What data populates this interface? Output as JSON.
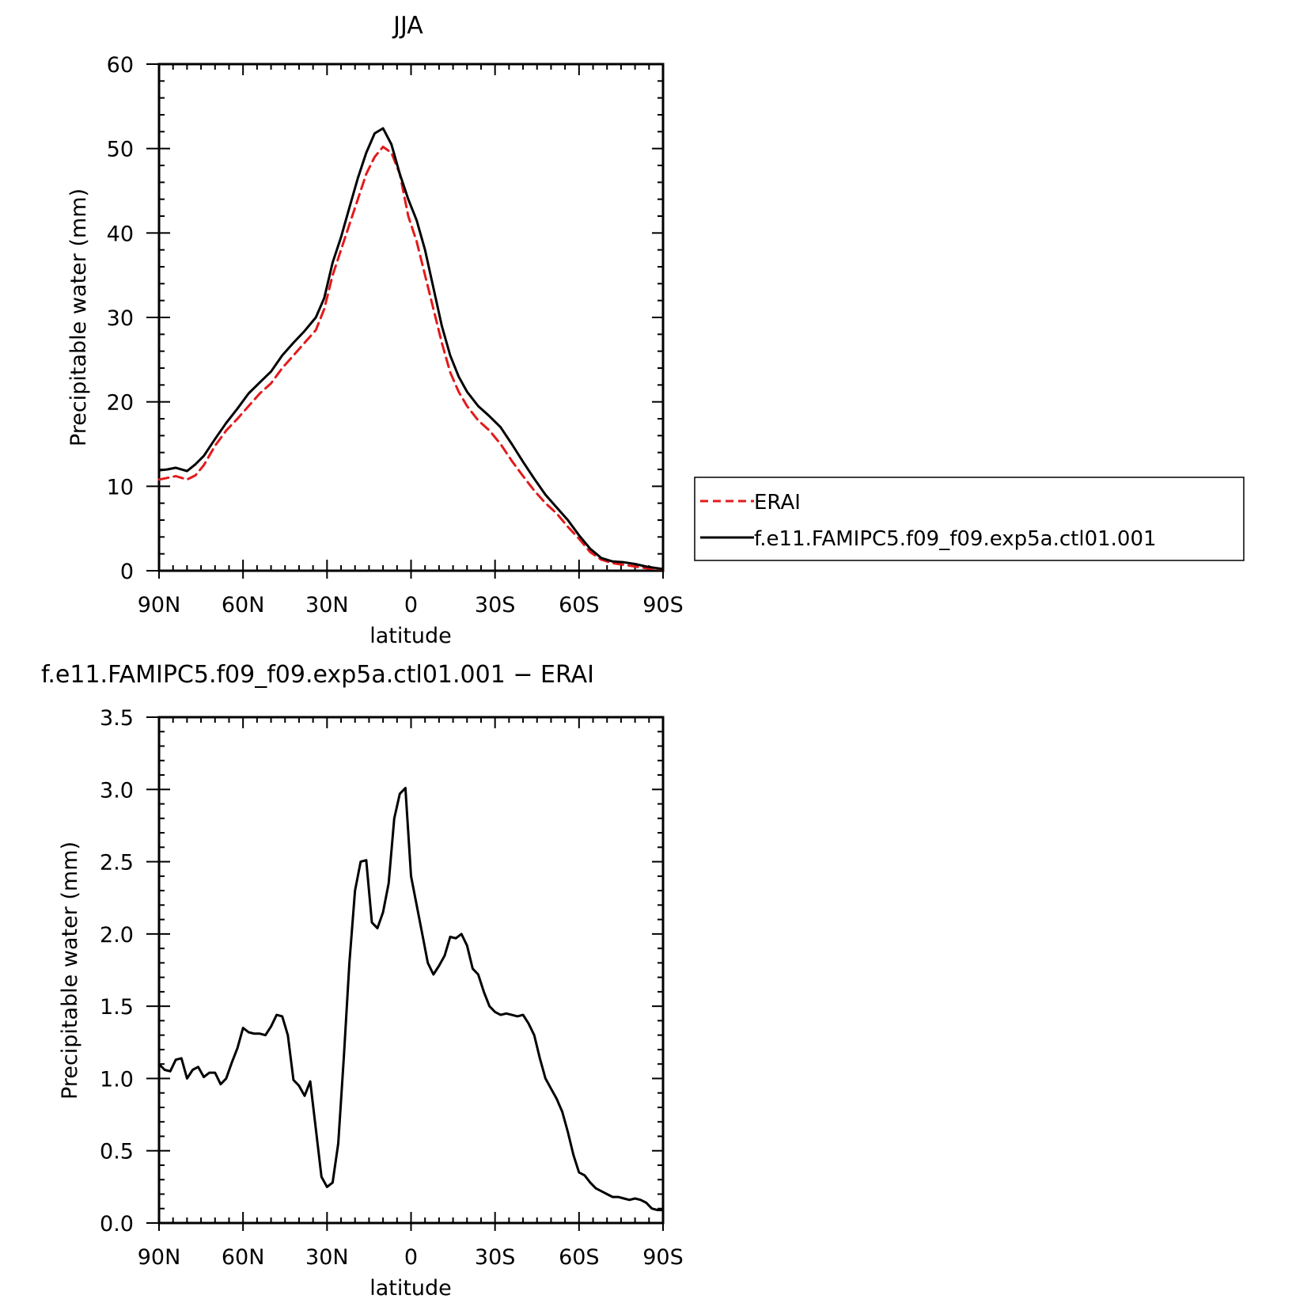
{
  "chart_data": [
    {
      "type": "line",
      "title": "JJA",
      "xlabel": "latitude",
      "ylabel": "Precipitable water (mm)",
      "xlim": [
        90,
        -90
      ],
      "ylim": [
        0,
        60
      ],
      "x_tick_values": [
        90,
        60,
        30,
        0,
        -30,
        -60,
        -90
      ],
      "x_tick_labels": [
        "90N",
        "60N",
        "30N",
        "0",
        "30S",
        "60S",
        "90S"
      ],
      "y_tick_values": [
        0,
        10,
        20,
        30,
        40,
        50,
        60
      ],
      "y_tick_labels": [
        "0",
        "10",
        "20",
        "30",
        "40",
        "50",
        "60"
      ],
      "grid": false,
      "legend_position": "right",
      "series": [
        {
          "name": "ERAI",
          "color": "#e31a1c",
          "dash": "dashed",
          "x": [
            90,
            87,
            84,
            80,
            77,
            74,
            70,
            66,
            62,
            58,
            54,
            50,
            46,
            42,
            38,
            34,
            31,
            28,
            25,
            22,
            19,
            16,
            13,
            10,
            7,
            4,
            1,
            -2,
            -5,
            -8,
            -11,
            -14,
            -17,
            -20,
            -24,
            -28,
            -32,
            -36,
            -40,
            -44,
            -48,
            -52,
            -56,
            -60,
            -64,
            -68,
            -72,
            -76,
            -80,
            -84,
            -88,
            -90
          ],
          "values": [
            10.8,
            11.0,
            11.2,
            10.8,
            11.3,
            12.5,
            14.8,
            16.6,
            18.0,
            19.5,
            21.0,
            22.2,
            24.0,
            25.5,
            27.0,
            28.5,
            31.0,
            35.0,
            38.0,
            41.0,
            44.0,
            47.0,
            49.0,
            50.2,
            49.5,
            47.0,
            42.0,
            39.0,
            35.0,
            31.0,
            27.0,
            23.5,
            21.2,
            19.5,
            17.8,
            16.6,
            15.0,
            13.0,
            11.2,
            9.5,
            8.0,
            6.8,
            5.2,
            3.8,
            2.2,
            1.3,
            0.9,
            0.7,
            0.5,
            0.3,
            0.2,
            0.2
          ]
        },
        {
          "name": "f.e11.FAMIPC5.f09_f09.exp5a.ctl01.001",
          "color": "#000000",
          "dash": "solid",
          "x": [
            90,
            87,
            84,
            80,
            77,
            74,
            70,
            66,
            62,
            58,
            54,
            50,
            46,
            42,
            38,
            34,
            31,
            28,
            25,
            22,
            19,
            16,
            13,
            10,
            7,
            4,
            1,
            -2,
            -5,
            -8,
            -11,
            -14,
            -17,
            -20,
            -24,
            -28,
            -32,
            -36,
            -40,
            -44,
            -48,
            -52,
            -56,
            -60,
            -64,
            -68,
            -72,
            -76,
            -80,
            -84,
            -88,
            -90
          ],
          "values": [
            11.9,
            12.0,
            12.2,
            11.8,
            12.6,
            13.6,
            15.6,
            17.5,
            19.2,
            21.0,
            22.3,
            23.6,
            25.5,
            27.0,
            28.4,
            30.0,
            32.3,
            36.5,
            39.5,
            43.0,
            46.5,
            49.5,
            51.8,
            52.4,
            50.5,
            47.0,
            44.0,
            41.5,
            38.0,
            33.5,
            29.0,
            25.5,
            23.0,
            21.2,
            19.5,
            18.3,
            17.0,
            15.0,
            12.9,
            10.9,
            9.0,
            7.5,
            6.0,
            4.2,
            2.6,
            1.5,
            1.1,
            1.0,
            0.8,
            0.5,
            0.3,
            0.2
          ]
        }
      ]
    },
    {
      "type": "line",
      "title": "f.e11.FAMIPC5.f09_f09.exp5a.ctl01.001 − ERAI",
      "xlabel": "latitude",
      "ylabel": "Precipitable water (mm)",
      "xlim": [
        90,
        -90
      ],
      "ylim": [
        0,
        3.5
      ],
      "x_tick_values": [
        90,
        60,
        30,
        0,
        -30,
        -60,
        -90
      ],
      "x_tick_labels": [
        "90N",
        "60N",
        "30N",
        "0",
        "30S",
        "60S",
        "90S"
      ],
      "y_tick_values": [
        0,
        0.5,
        1.0,
        1.5,
        2.0,
        2.5,
        3.0,
        3.5
      ],
      "y_tick_labels": [
        "0.0",
        "0.5",
        "1.0",
        "1.5",
        "2.0",
        "2.5",
        "3.0",
        "3.5"
      ],
      "grid": false,
      "series": [
        {
          "color": "#000000",
          "dash": "solid",
          "x": [
            90,
            88,
            86,
            84,
            82,
            80,
            78,
            76,
            74,
            72,
            70,
            68,
            66,
            64,
            62,
            60,
            58,
            56,
            54,
            52,
            50,
            48,
            46,
            44,
            42,
            40,
            38,
            36,
            34,
            32,
            30,
            28,
            26,
            24,
            22,
            20,
            18,
            16,
            14,
            12,
            10,
            8,
            6,
            4,
            2,
            0,
            -2,
            -4,
            -6,
            -8,
            -10,
            -12,
            -14,
            -16,
            -18,
            -20,
            -22,
            -24,
            -26,
            -28,
            -30,
            -32,
            -34,
            -36,
            -38,
            -40,
            -42,
            -44,
            -46,
            -48,
            -50,
            -52,
            -54,
            -56,
            -58,
            -60,
            -62,
            -64,
            -66,
            -68,
            -70,
            -72,
            -74,
            -76,
            -78,
            -80,
            -82,
            -84,
            -86,
            -88,
            -90
          ],
          "values": [
            1.1,
            1.06,
            1.05,
            1.13,
            1.14,
            1.0,
            1.06,
            1.08,
            1.01,
            1.04,
            1.04,
            0.96,
            1.0,
            1.11,
            1.21,
            1.35,
            1.32,
            1.31,
            1.31,
            1.3,
            1.36,
            1.44,
            1.43,
            1.3,
            0.99,
            0.95,
            0.88,
            0.98,
            0.65,
            0.32,
            0.25,
            0.28,
            0.55,
            1.15,
            1.8,
            2.3,
            2.5,
            2.51,
            2.08,
            2.04,
            2.15,
            2.35,
            2.8,
            2.97,
            3.01,
            2.4,
            2.2,
            2.0,
            1.8,
            1.72,
            1.78,
            1.85,
            1.98,
            1.97,
            2.0,
            1.92,
            1.76,
            1.72,
            1.6,
            1.5,
            1.46,
            1.44,
            1.45,
            1.44,
            1.43,
            1.44,
            1.38,
            1.3,
            1.14,
            1.0,
            0.93,
            0.86,
            0.77,
            0.63,
            0.47,
            0.35,
            0.33,
            0.28,
            0.24,
            0.22,
            0.2,
            0.18,
            0.18,
            0.17,
            0.16,
            0.17,
            0.16,
            0.14,
            0.1,
            0.09,
            0.09
          ]
        }
      ]
    }
  ]
}
